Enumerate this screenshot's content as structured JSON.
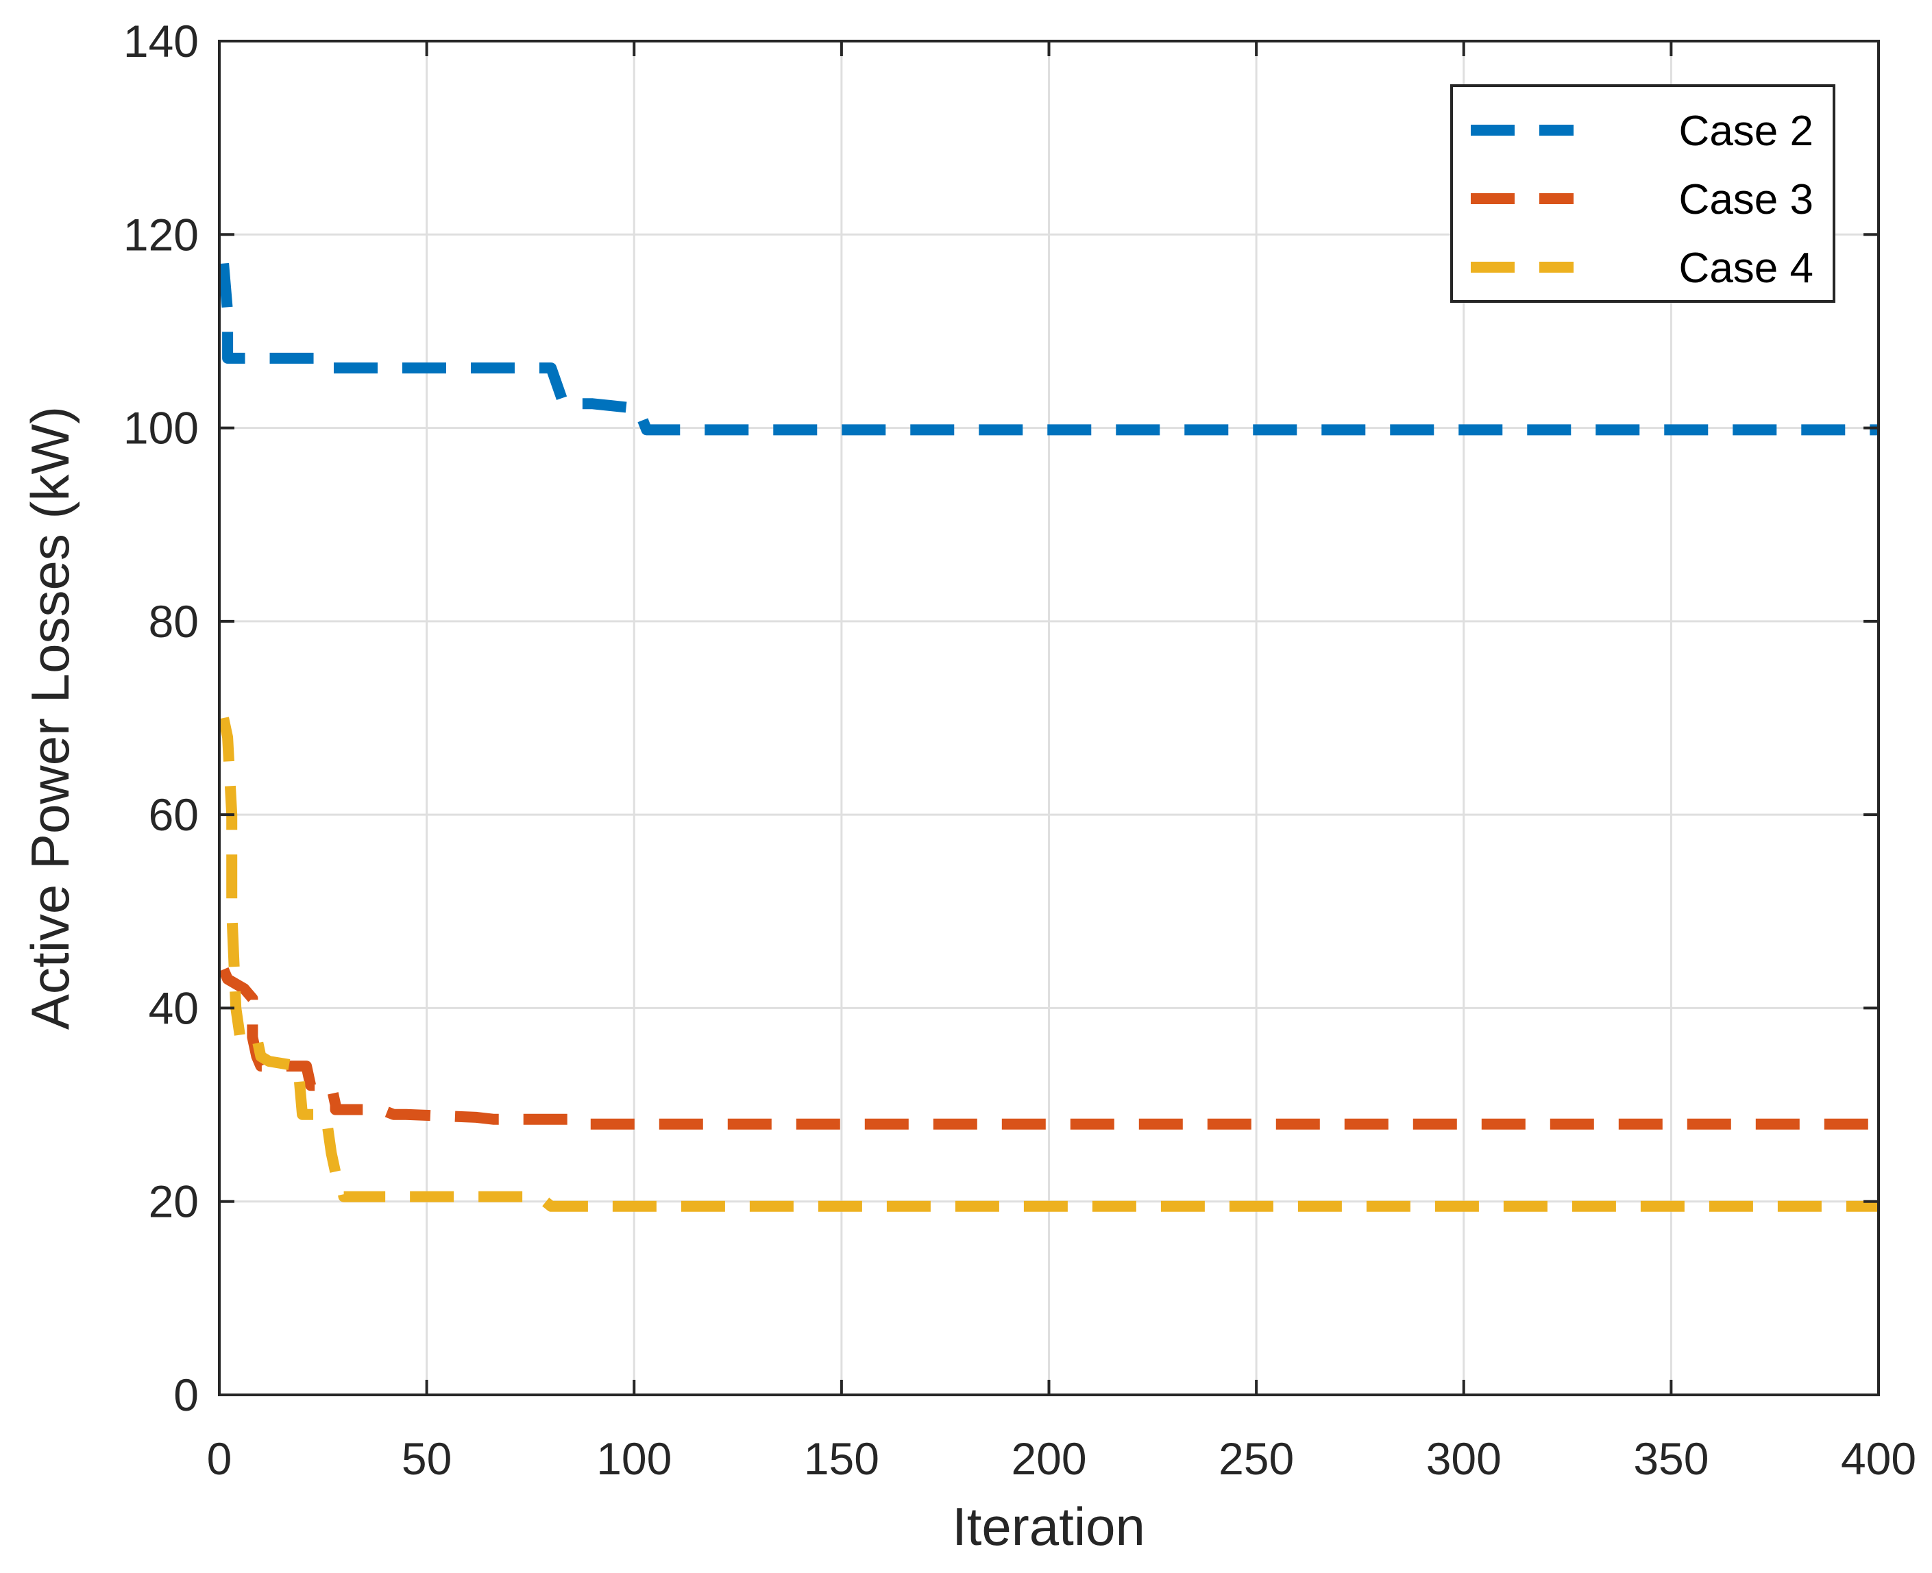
{
  "chart_data": {
    "type": "line",
    "title": "",
    "xlabel": "Iteration",
    "ylabel": "Active Power Losses (kW)",
    "xlim": [
      0,
      400
    ],
    "ylim": [
      0,
      140
    ],
    "xticks": [
      0,
      50,
      100,
      150,
      200,
      250,
      300,
      350,
      400
    ],
    "yticks": [
      0,
      20,
      40,
      60,
      80,
      100,
      120,
      140
    ],
    "xtick_labels": [
      "0",
      "50",
      "100",
      "150",
      "200",
      "250",
      "300",
      "350",
      "400"
    ],
    "ytick_labels": [
      "0",
      "20",
      "40",
      "60",
      "80",
      "100",
      "120",
      "140"
    ],
    "grid": true,
    "legend_position": "top-right",
    "series": [
      {
        "name": "Case 2",
        "color": "#0072BD",
        "style": "dashed",
        "x": [
          1,
          2,
          2,
          24,
          26,
          80,
          83,
          90,
          101,
          103,
          400
        ],
        "y": [
          117,
          112,
          107.2,
          107.2,
          106.2,
          106.2,
          102.5,
          102.5,
          102,
          99.8,
          99.8
        ]
      },
      {
        "name": "Case 3",
        "color": "#D95319",
        "style": "dashed",
        "x": [
          1,
          2,
          6,
          8,
          8,
          9,
          10,
          21,
          22,
          27,
          28,
          28,
          39,
          42,
          45,
          62,
          66,
          85,
          87,
          400
        ],
        "y": [
          44,
          43,
          42,
          41,
          37,
          35,
          34,
          34,
          32,
          32,
          30,
          29.5,
          29.5,
          29,
          29,
          28.7,
          28.5,
          28.5,
          28,
          28
        ]
      },
      {
        "name": "Case 4",
        "color": "#EDB120",
        "style": "dashed",
        "x": [
          1,
          2,
          3,
          3,
          4,
          5,
          9,
          10,
          12,
          19,
          20,
          25,
          26,
          27,
          28,
          29,
          30,
          33,
          76,
          78,
          80,
          400
        ],
        "y": [
          70,
          68,
          60,
          50,
          40,
          37,
          37,
          35,
          34.5,
          34,
          29,
          29,
          28,
          25,
          23,
          22.5,
          20.5,
          20.5,
          20.5,
          20.2,
          19.5,
          19.5
        ]
      }
    ]
  }
}
